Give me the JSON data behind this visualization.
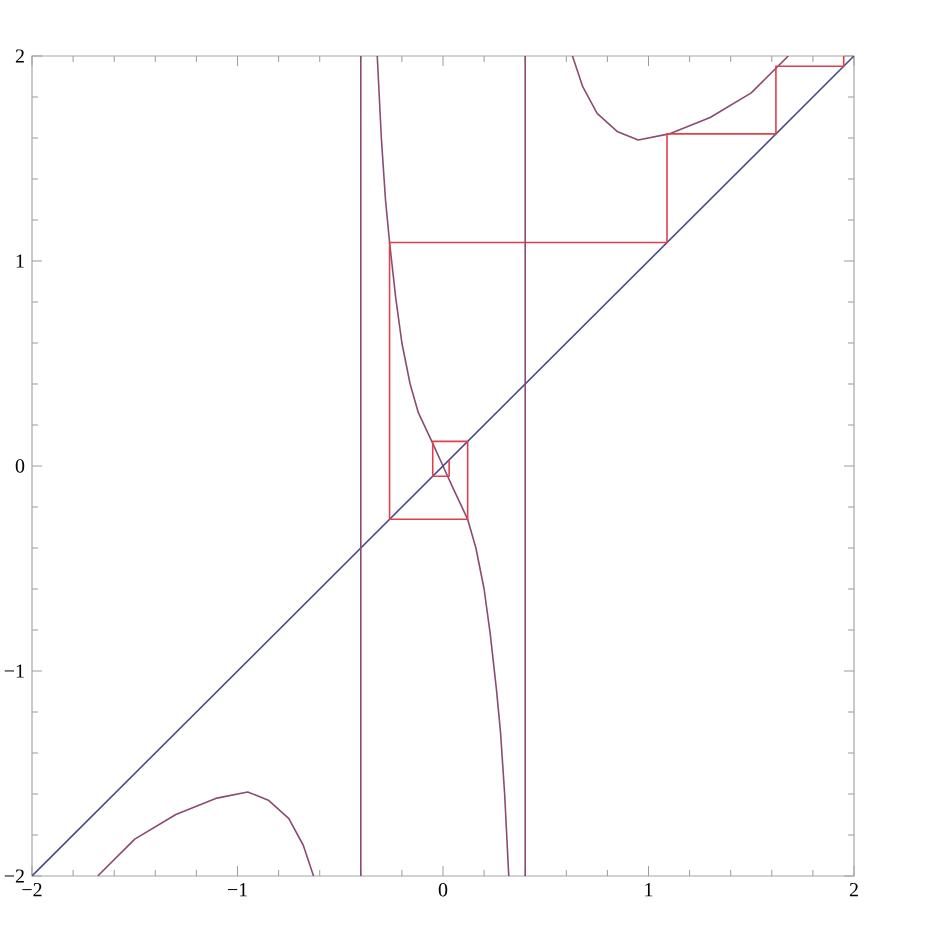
{
  "chart_data": {
    "type": "line",
    "series": [
      {
        "color": "#8a4a72",
        "x": [
          -1.68,
          -1.5,
          -1.3,
          -1.1,
          -0.95,
          -0.85,
          -0.75,
          -0.68,
          -0.63
        ],
        "values": [
          -2,
          -1.82,
          -1.7,
          -1.62,
          -1.59,
          -1.63,
          -1.72,
          -1.85,
          -2
        ]
      },
      {
        "color": "#8a4a72",
        "x": [
          -0.32,
          -0.3,
          -0.28,
          -0.26,
          -0.23,
          -0.2,
          -0.16,
          -0.12,
          -0.05,
          0,
          0.05,
          0.12,
          0.16,
          0.2,
          0.23,
          0.26,
          0.28,
          0.3,
          0.32
        ],
        "values": [
          2,
          1.6,
          1.3,
          1.09,
          0.82,
          0.6,
          0.4,
          0.26,
          0.11,
          0,
          -0.11,
          -0.26,
          -0.4,
          -0.6,
          -0.82,
          -1.09,
          -1.3,
          -1.6,
          -2
        ]
      },
      {
        "color": "#8a4a72",
        "x": [
          0.63,
          0.68,
          0.75,
          0.85,
          0.95,
          1.1,
          1.3,
          1.5,
          1.68
        ],
        "values": [
          2,
          1.85,
          1.72,
          1.63,
          1.59,
          1.62,
          1.7,
          1.82,
          2
        ]
      },
      {
        "color": "#4a4a88",
        "x": [
          -2,
          2
        ],
        "values": [
          -2,
          2
        ]
      },
      {
        "color": "#e0404c",
        "x": [
          0.03,
          0.03,
          -0.05,
          -0.05,
          0.12,
          0.12,
          -0.26,
          -0.26,
          1.09,
          1.09,
          1.62,
          1.62,
          1.95,
          1.95
        ],
        "values": [
          0.03,
          -0.05,
          -0.05,
          0.12,
          0.12,
          -0.26,
          -0.26,
          1.09,
          1.09,
          1.62,
          1.62,
          1.95,
          1.95,
          2
        ]
      }
    ],
    "ref_lines": [
      {
        "axis": "x",
        "value": -0.4,
        "color": "#8a4a72"
      },
      {
        "axis": "x",
        "value": 0.4,
        "color": "#8a4a72"
      }
    ],
    "xlim": [
      -2,
      2
    ],
    "ylim": [
      -2,
      2
    ],
    "xticks": [
      {
        "value": -2,
        "label": "−2"
      },
      {
        "value": -1.8,
        "label": null
      },
      {
        "value": -1.6,
        "label": null
      },
      {
        "value": -1.4,
        "label": null
      },
      {
        "value": -1.2,
        "label": null
      },
      {
        "value": -1,
        "label": "−1"
      },
      {
        "value": -0.8,
        "label": null
      },
      {
        "value": -0.6,
        "label": null
      },
      {
        "value": -0.4,
        "label": null
      },
      {
        "value": -0.2,
        "label": null
      },
      0,
      {
        "value": 0.2,
        "label": null
      },
      {
        "value": 0.4,
        "label": null
      },
      {
        "value": 0.6,
        "label": null
      },
      {
        "value": 0.8,
        "label": null
      },
      1,
      {
        "value": 1.2,
        "label": null
      },
      {
        "value": 1.4,
        "label": null
      },
      {
        "value": 1.6,
        "label": null
      },
      {
        "value": 1.8,
        "label": null
      },
      2
    ],
    "yticks": [
      {
        "value": -2,
        "label": "−2"
      },
      {
        "value": -1.8,
        "label": null
      },
      {
        "value": -1.6,
        "label": null
      },
      {
        "value": -1.4,
        "label": null
      },
      {
        "value": -1.2,
        "label": null
      },
      {
        "value": -1,
        "label": "−1"
      },
      {
        "value": -0.8,
        "label": null
      },
      {
        "value": -0.6,
        "label": null
      },
      {
        "value": -0.4,
        "label": null
      },
      {
        "value": -0.2,
        "label": null
      },
      0,
      {
        "value": 0.2,
        "label": null
      },
      {
        "value": 0.4,
        "label": null
      },
      {
        "value": 0.6,
        "label": null
      },
      {
        "value": 0.8,
        "label": null
      },
      1,
      {
        "value": 1.2,
        "label": null
      },
      {
        "value": 1.4,
        "label": null
      },
      {
        "value": 1.6,
        "label": null
      },
      {
        "value": 1.8,
        "label": null
      },
      2
    ],
    "marker": "none",
    "line_style": "solid"
  }
}
